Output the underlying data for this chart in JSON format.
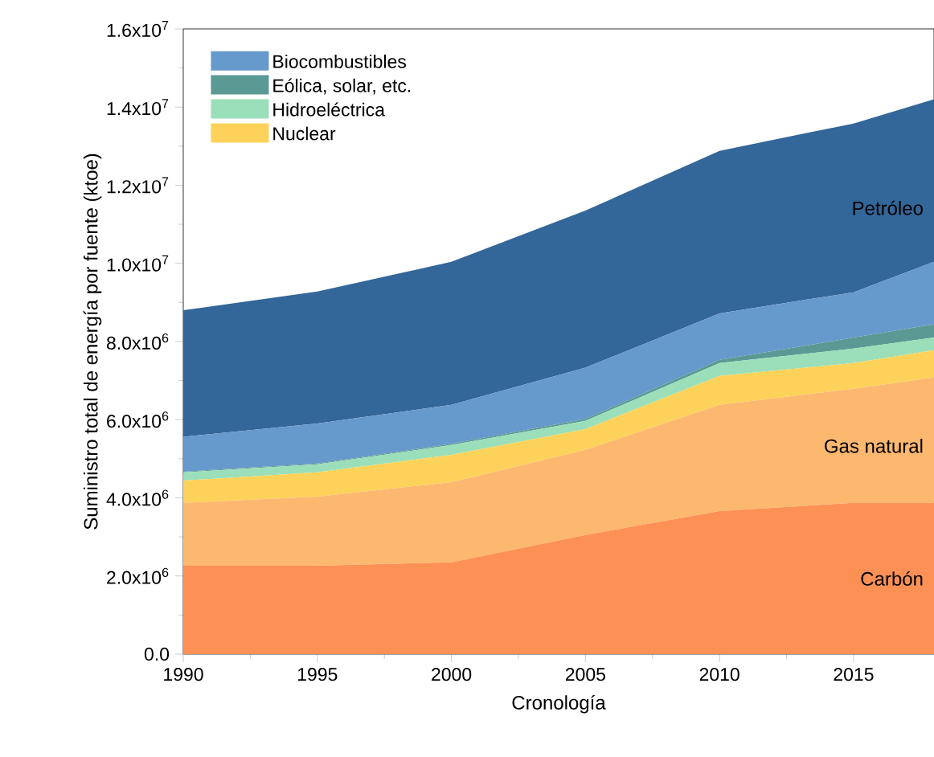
{
  "chart_data": {
    "type": "area",
    "stacked": true,
    "xlabel": "Cronología",
    "ylabel": "Suministro total de energía por fuente (ktoe)",
    "x": [
      1990,
      1995,
      2000,
      2005,
      2010,
      2015,
      2018
    ],
    "xlim": [
      1990,
      2018
    ],
    "xticks": [
      1990,
      1995,
      2000,
      2005,
      2010,
      2015
    ],
    "ylim": [
      0,
      16000000
    ],
    "yticks": [
      {
        "value": 0,
        "label": "0.0"
      },
      {
        "value": 2000000,
        "label": "2.0x10$^{6}$"
      },
      {
        "value": 4000000,
        "label": "4.0x10$^{6}$"
      },
      {
        "value": 6000000,
        "label": "6.0x10$^{6}$"
      },
      {
        "value": 8000000,
        "label": "8.0x10$^{6}$"
      },
      {
        "value": 10000000,
        "label": "1.0x10$^{7}$"
      },
      {
        "value": 12000000,
        "label": "1.2x10$^{7}$"
      },
      {
        "value": 14000000,
        "label": "1.4x10$^{7}$"
      },
      {
        "value": 16000000,
        "label": "1.6x10$^{7}$"
      }
    ],
    "legend": "top left",
    "series": [
      {
        "name": "Carbón",
        "color": "#fd9155",
        "values": [
          2260000,
          2260000,
          2350000,
          3050000,
          3660000,
          3870000,
          3870000
        ]
      },
      {
        "name": "Gas natural",
        "color": "#fdb86f",
        "values": [
          1610000,
          1770000,
          2050000,
          2180000,
          2720000,
          2920000,
          3210000
        ]
      },
      {
        "name": "Nuclear",
        "color": "#fdd25a",
        "values": [
          570000,
          620000,
          700000,
          530000,
          740000,
          660000,
          700000
        ]
      },
      {
        "name": "Hidroeléctrica",
        "color": "#9adfb9",
        "values": [
          210000,
          210000,
          250000,
          210000,
          330000,
          370000,
          320000
        ]
      },
      {
        "name": "Eólica, solar, etc.",
        "color": "#5b9a94",
        "values": [
          20000,
          20000,
          30000,
          50000,
          80000,
          280000,
          340000
        ]
      },
      {
        "name": "Biocombustibles",
        "color": "#6699cc",
        "values": [
          890000,
          1020000,
          1000000,
          1310000,
          1190000,
          1160000,
          1600000
        ]
      },
      {
        "name": "Petróleo",
        "color": "#336699",
        "values": [
          3240000,
          3380000,
          3660000,
          4020000,
          4160000,
          4320000,
          4160000
        ]
      }
    ]
  }
}
